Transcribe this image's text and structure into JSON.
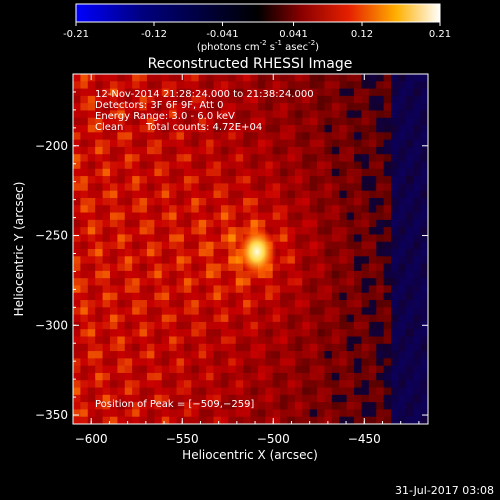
{
  "colorbar": {
    "ticks": [
      "-0.21",
      "-0.12",
      "-0.041",
      "0.041",
      "0.12",
      "0.21"
    ],
    "tick_values": [
      -0.21,
      -0.12,
      -0.041,
      0.041,
      0.12,
      0.21
    ],
    "range": [
      -0.21,
      0.21
    ],
    "units": "(photons cm",
    "units_exp1": "-2",
    "units_mid": " s",
    "units_exp2": "-1",
    "units_end": " asec",
    "units_exp3": "-2",
    "units_close": ")"
  },
  "chart_data": {
    "type": "heatmap",
    "title": "Reconstructed RHESSI Image",
    "xlabel": "Heliocentric X (arcsec)",
    "ylabel": "Heliocentric Y (arcsec)",
    "xlim": [
      -610,
      -415
    ],
    "ylim": [
      -355,
      -160
    ],
    "xticks": [
      -600,
      -550,
      -500,
      -450
    ],
    "yticks": [
      -200,
      -250,
      -300,
      -350
    ],
    "xtick_labels": [
      "−600",
      "−550",
      "−500",
      "−450"
    ],
    "ytick_labels": [
      "−200",
      "−250",
      "−300",
      "−350"
    ],
    "peak": {
      "x": -509,
      "y": -259
    },
    "annotations": {
      "time": "12-Nov-2014 21:28:24.000 to 21:38:24.000",
      "detectors": "Detectors: 3F 6F 9F, Att 0",
      "energy": "Energy Range: 3.0 - 6.0 keV",
      "method": "Clean",
      "counts": "Total counts: 4.72E+04",
      "peak_label": "Position of Peak = [−509,−259]"
    }
  },
  "footer": {
    "date": "31-Jul-2017 03:08"
  }
}
